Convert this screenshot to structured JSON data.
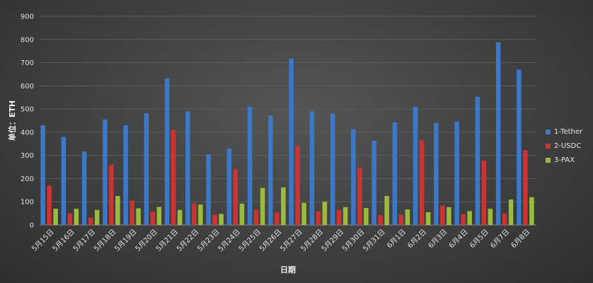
{
  "chart_data": {
    "type": "bar",
    "title": "",
    "xlabel": "日期",
    "ylabel": "单位：ETH",
    "ylim": [
      0,
      900
    ],
    "yticks": [
      0,
      100,
      200,
      300,
      400,
      500,
      600,
      700,
      800,
      900
    ],
    "grid": true,
    "legend_position": "right",
    "categories": [
      "5月15日",
      "5月16日",
      "5月17日",
      "5月18日",
      "5月19日",
      "5月20日",
      "5月21日",
      "5月22日",
      "5月23日",
      "5月24日",
      "5月25日",
      "5月26日",
      "5月27日",
      "5月28日",
      "5月29日",
      "5月30日",
      "5月31日",
      "6月1日",
      "6月2日",
      "6月3日",
      "6月4日",
      "6月5日",
      "6月7日",
      "6月8日"
    ],
    "series": [
      {
        "name": "1-Tether",
        "color": "#3c78c8",
        "values": [
          430,
          380,
          317,
          455,
          430,
          482,
          632,
          490,
          305,
          330,
          510,
          472,
          718,
          490,
          480,
          412,
          363,
          443,
          510,
          440,
          446,
          553,
          788,
          670
        ]
      },
      {
        "name": "2-USDC",
        "color": "#cc3333",
        "values": [
          170,
          50,
          32,
          260,
          105,
          57,
          410,
          93,
          45,
          240,
          65,
          55,
          340,
          58,
          65,
          248,
          42,
          45,
          365,
          83,
          47,
          278,
          50,
          322
        ]
      },
      {
        "name": "3-PAX",
        "color": "#9bbb3c",
        "values": [
          70,
          70,
          65,
          125,
          72,
          78,
          65,
          88,
          48,
          92,
          160,
          162,
          95,
          100,
          77,
          73,
          125,
          67,
          55,
          77,
          60,
          70,
          110,
          120
        ]
      }
    ]
  }
}
